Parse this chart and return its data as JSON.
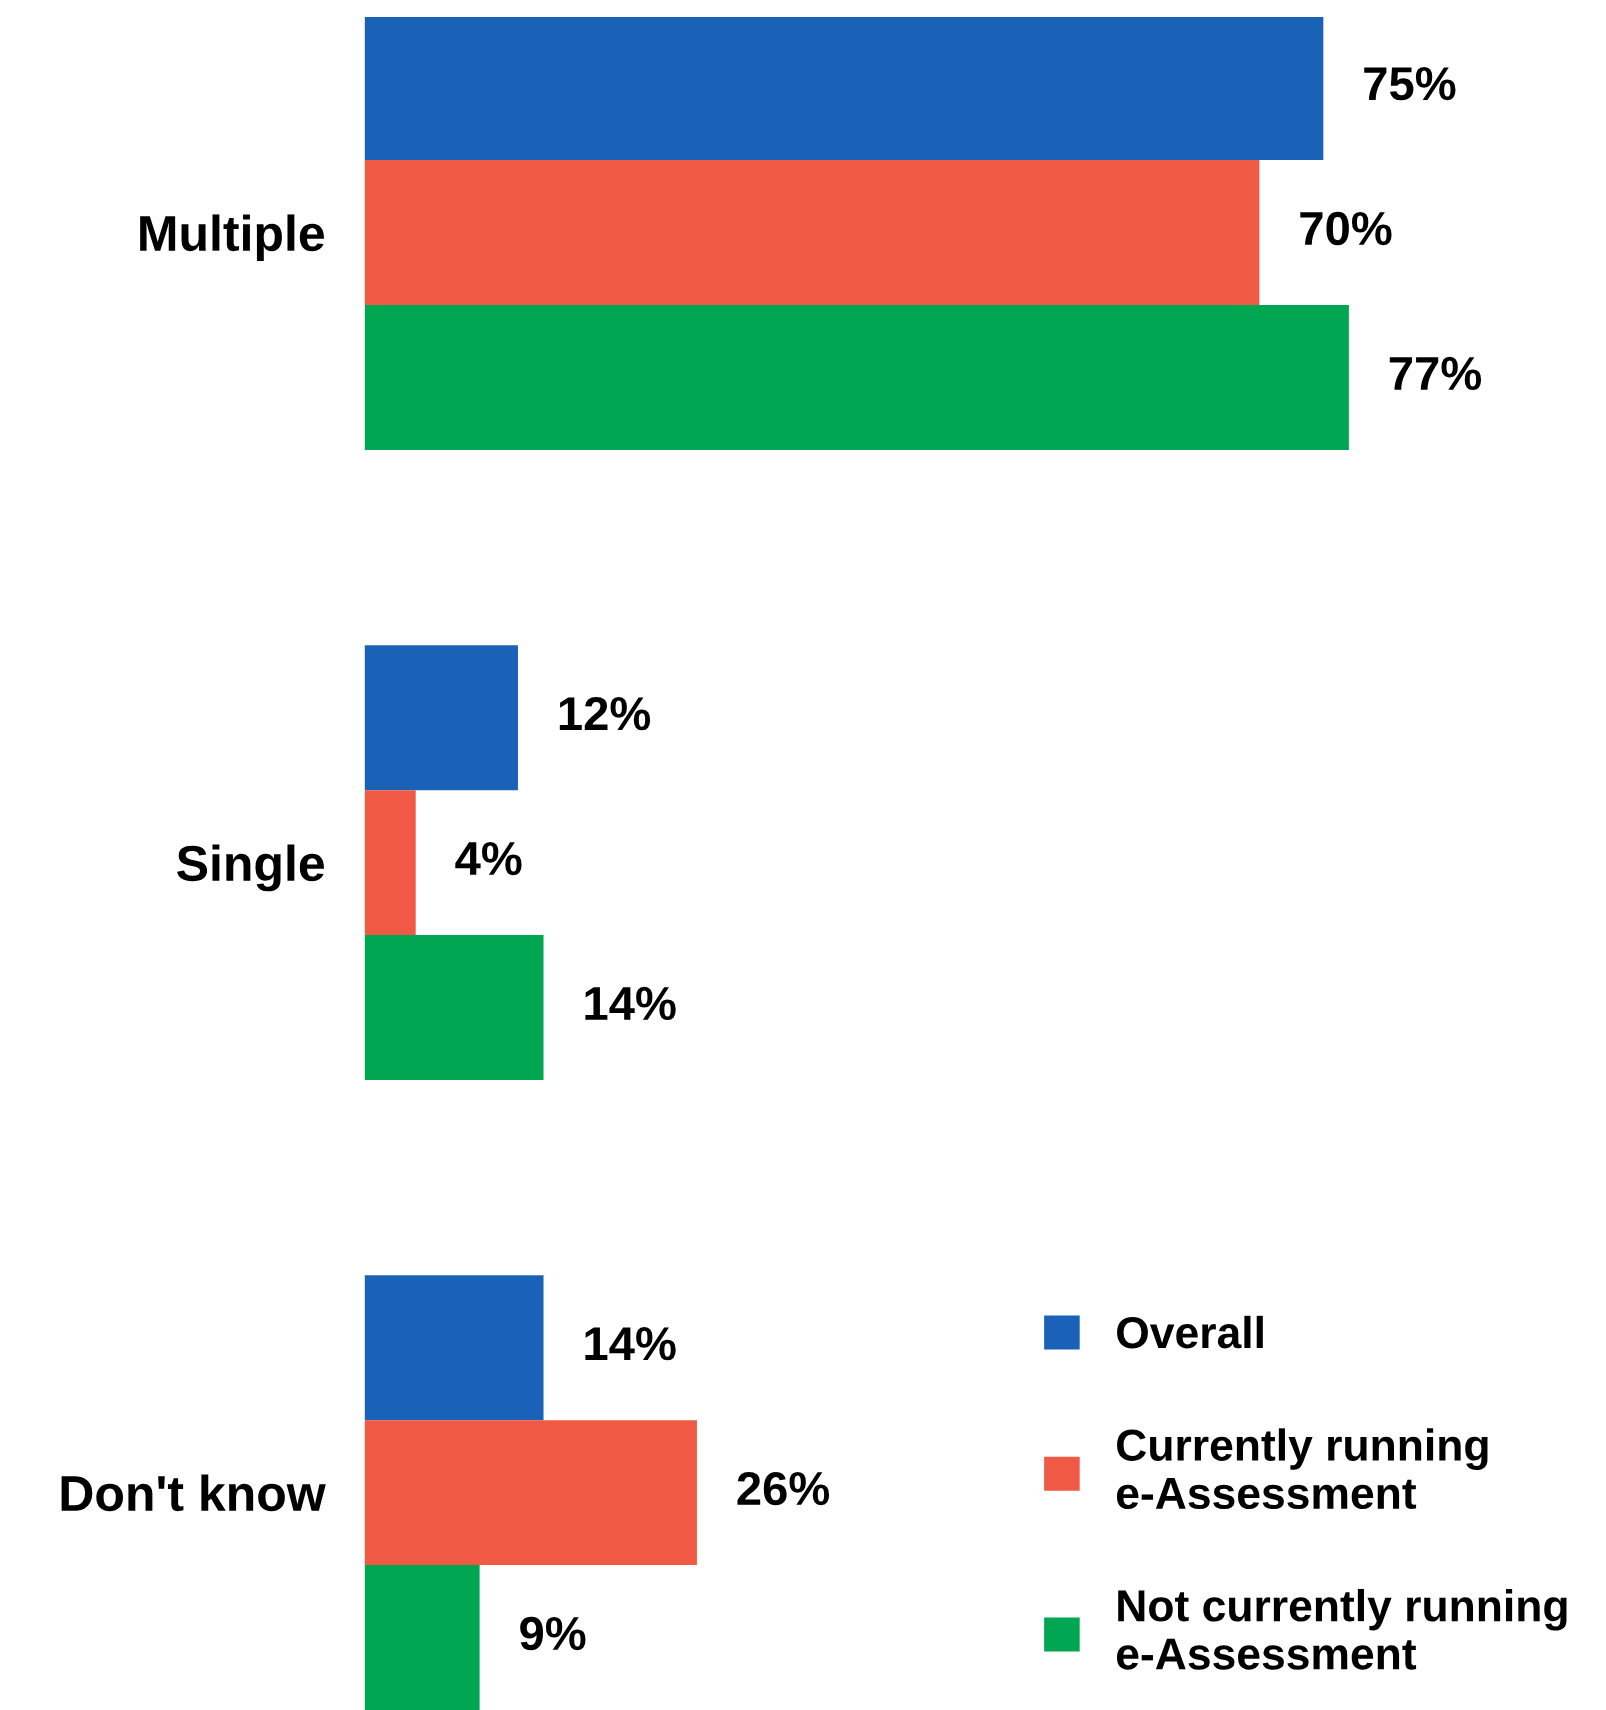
{
  "chart_data": {
    "type": "bar",
    "orientation": "horizontal",
    "categories": [
      "Multiple",
      "Single",
      "Don't know"
    ],
    "series": [
      {
        "name": "Overall",
        "color": "#1a62b8",
        "values": [
          75,
          12,
          14
        ],
        "value_labels": [
          "75%",
          "12%",
          "14%"
        ]
      },
      {
        "name": "Currently running\ne-Assessment",
        "color": "#f05a45",
        "values": [
          70,
          4,
          26
        ],
        "value_labels": [
          "70%",
          "4%",
          "26%"
        ]
      },
      {
        "name": "Not currently running\ne-Assessment",
        "color": "#00a651",
        "values": [
          77,
          14,
          9
        ],
        "value_labels": [
          "77%",
          "14%",
          "9%"
        ]
      }
    ],
    "legend": "bottom right",
    "grid": false
  }
}
